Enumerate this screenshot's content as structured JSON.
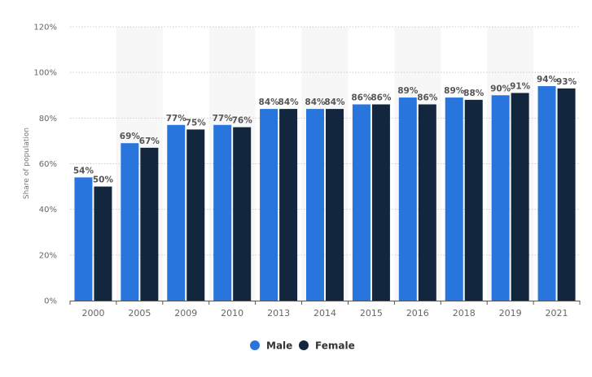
{
  "chart_data": {
    "type": "bar",
    "title": "",
    "xlabel": "",
    "ylabel": "Share of population",
    "ylim": [
      0,
      120
    ],
    "yticks": [
      0,
      20,
      40,
      60,
      80,
      100,
      120
    ],
    "ytick_suffix": "%",
    "grid": true,
    "legend_position": "bottom",
    "categories": [
      "2000",
      "2005",
      "2009",
      "2010",
      "2013",
      "2014",
      "2015",
      "2016",
      "2018",
      "2019",
      "2021"
    ],
    "series": [
      {
        "name": "Male",
        "color": "#2876dd",
        "values": [
          54,
          69,
          77,
          77,
          84,
          84,
          86,
          89,
          89,
          90,
          94
        ]
      },
      {
        "name": "Female",
        "color": "#12263e",
        "values": [
          50,
          67,
          75,
          76,
          84,
          84,
          86,
          86,
          88,
          91,
          93
        ]
      }
    ]
  }
}
